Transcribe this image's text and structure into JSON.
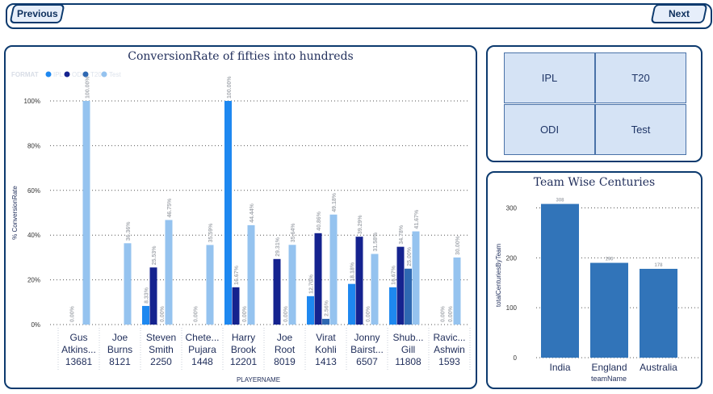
{
  "nav": {
    "previous_label": "Previous",
    "next_label": "Next"
  },
  "main_chart": {
    "title": "ConversionRate of fifties into hundreds",
    "legend_title": "FORMAT",
    "ylabel": "% ConversionRate",
    "xlabel": "PLAYERNAME",
    "colors": {
      "IPL": "#1e88f0",
      "ODI": "#15238f",
      "T20": "#2e68b2",
      "Test": "#95c3ef"
    }
  },
  "chart_data": [
    {
      "type": "bar",
      "title": "ConversionRate of fifties into hundreds",
      "xlabel": "PLAYERNAME",
      "ylabel": "% ConversionRate",
      "ylim": [
        0,
        100
      ],
      "yticks": [
        "0%",
        "20%",
        "40%",
        "60%",
        "80%",
        "100%"
      ],
      "legend": {
        "title": "FORMAT",
        "position": "top-left",
        "entries": [
          "IPL",
          "ODI",
          "T20",
          "Test"
        ]
      },
      "categories": [
        [
          "Gus",
          "Atkins...",
          "13681"
        ],
        [
          "Joe",
          "Burns",
          "8121"
        ],
        [
          "Steven",
          "Smith",
          "2250"
        ],
        [
          "Chete...",
          "Pujara",
          "1448"
        ],
        [
          "Harry",
          "Brook",
          "12201"
        ],
        [
          "Joe",
          "Root",
          "8019"
        ],
        [
          "Virat",
          "Kohli",
          "1413"
        ],
        [
          "Jonny",
          "Bairst...",
          "6507"
        ],
        [
          "Shub...",
          "Gill",
          "11808"
        ],
        [
          "Ravic...",
          "Ashwin",
          "1593"
        ]
      ],
      "series": [
        {
          "name": "IPL",
          "values": [
            null,
            null,
            8.33,
            null,
            100.0,
            null,
            12.7,
            18.18,
            16.67,
            null
          ]
        },
        {
          "name": "ODI",
          "values": [
            0.0,
            null,
            25.53,
            0.0,
            16.67,
            29.31,
            40.86,
            39.29,
            34.78,
            0.0
          ]
        },
        {
          "name": "T20",
          "values": [
            null,
            null,
            0.0,
            null,
            0.0,
            0.0,
            2.56,
            0.0,
            25.0,
            0.0
          ]
        },
        {
          "name": "Test",
          "values": [
            100.0,
            36.36,
            46.75,
            35.59,
            44.44,
            35.64,
            49.18,
            31.58,
            41.67,
            30.0
          ]
        }
      ],
      "data_labels": {
        "IPL": [
          null,
          null,
          "8.33%",
          null,
          "100.00%",
          null,
          "12.70%",
          "18.18%",
          "16.67%",
          null
        ],
        "ODI": [
          "0.00%",
          null,
          "25.53%",
          "0.00%",
          "16.67%",
          "29.31%",
          "40.86%",
          "39.29%",
          "34.78%",
          "0.00%"
        ],
        "T20": [
          null,
          null,
          "0.00%",
          null,
          "0.00%",
          "0.00%",
          "2.56%",
          "0.00%",
          "25.00%",
          "0.00%"
        ],
        "Test": [
          "100.00%",
          "36.36%",
          "46.75%",
          "35.59%",
          "44.44%",
          "35.64%",
          "49.18%",
          "31.58%",
          "41.67%",
          "30.00%"
        ]
      },
      "grid": true
    },
    {
      "type": "bar",
      "title": "Team Wise Centuries",
      "xlabel": "teamName",
      "ylabel": "totalCenturiesByTeam",
      "ylim": [
        0,
        330
      ],
      "yticks": [
        "0",
        "100",
        "200",
        "300"
      ],
      "categories": [
        "India",
        "England",
        "Australia"
      ],
      "values": [
        308,
        190,
        178
      ],
      "data_labels": [
        "308",
        "190",
        "178"
      ],
      "color": "#3174b9",
      "grid": true
    }
  ],
  "slicer": {
    "buttons": [
      "IPL",
      "T20",
      "ODI",
      "Test"
    ]
  },
  "team_chart": {
    "title": "Team Wise Centuries",
    "ylabel": "totalCenturiesByTeam",
    "xlabel": "teamName"
  }
}
